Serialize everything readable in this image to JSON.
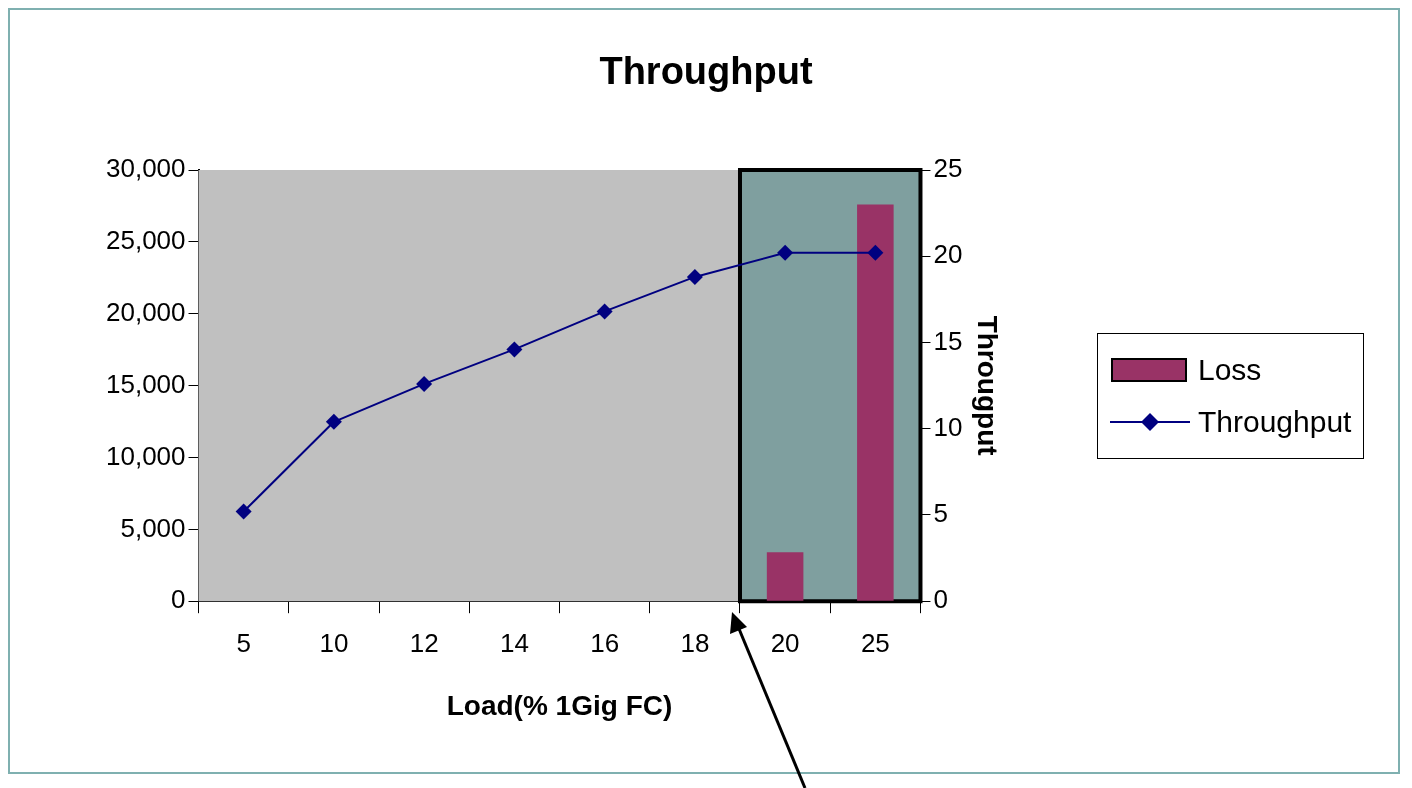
{
  "chart_data": {
    "type": "bar",
    "title": "Throughput",
    "xlabel": "Load(% 1Gig FC)",
    "y2label": "Througput",
    "categories": [
      "5",
      "10",
      "12",
      "14",
      "16",
      "18",
      "20",
      "25"
    ],
    "series": [
      {
        "name": "Loss",
        "color": "#993366",
        "values": [
          null,
          null,
          null,
          null,
          null,
          null,
          3400,
          27600
        ]
      },
      {
        "name": "Throughput",
        "type": "line",
        "axis": "y2",
        "color": "#000080",
        "values": [
          5.2,
          10.4,
          12.6,
          14.6,
          16.8,
          18.8,
          20.2,
          20.2
        ]
      }
    ],
    "ylim": [
      0,
      30000
    ],
    "yticks": [
      {
        "value": 0,
        "label": "0"
      },
      {
        "value": 5000,
        "label": "5,000"
      },
      {
        "value": 10000,
        "label": "10,000"
      },
      {
        "value": 15000,
        "label": "15,000"
      },
      {
        "value": 20000,
        "label": "20,000"
      },
      {
        "value": 25000,
        "label": "25,000"
      },
      {
        "value": 30000,
        "label": "30,000"
      }
    ],
    "y2lim": [
      0,
      25
    ],
    "y2ticks": [
      0,
      5,
      10,
      15,
      20,
      25
    ],
    "bands": [
      {
        "axis": "x",
        "from": "20",
        "to": "25",
        "color": "#7f9f9f"
      }
    ],
    "marker": "diamond",
    "legend": "right"
  }
}
